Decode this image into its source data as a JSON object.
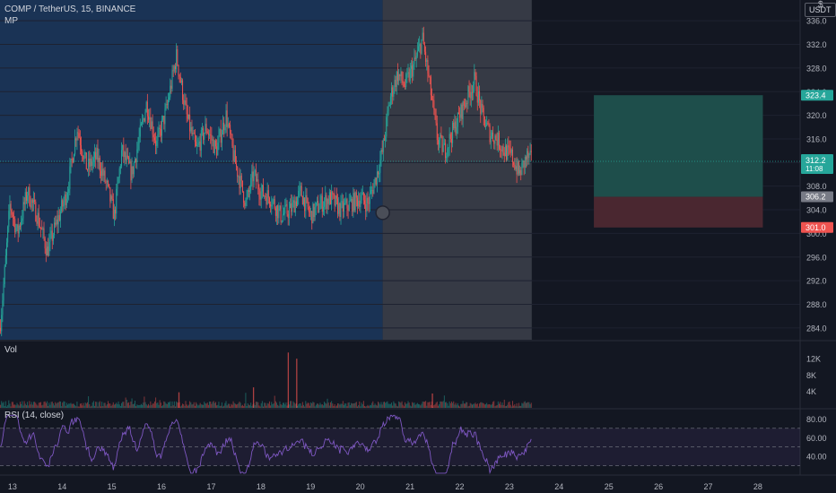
{
  "header": {
    "symbol": "COMP / TetherUS, 15, BINANCE",
    "indicator": "MP",
    "currency": "USDT",
    "corner_icon": "dollar-sign-icon"
  },
  "panes": {
    "volume_label": "Vol",
    "rsi_label": "RSI (14, close)"
  },
  "colors": {
    "background": "#131722",
    "up": "#26a69a",
    "down": "#ef5350",
    "rsi_line": "#7e57c2",
    "range_blue": "#1a3355",
    "range_gray": "#363a45",
    "target_zone": "#1e4e4b",
    "stop_zone": "#4a2730"
  },
  "price_axis": {
    "ticks": [
      "336.0",
      "332.0",
      "328.0",
      "324.0",
      "320.0",
      "316.0",
      "312.0",
      "308.0",
      "304.0",
      "300.0",
      "296.0",
      "292.0",
      "288.0",
      "284.0"
    ],
    "labels": {
      "target": "323.4",
      "last": "312.2",
      "countdown": "11:08",
      "entry": "306.2",
      "stop": "301.0"
    }
  },
  "volume_axis": {
    "ticks": [
      "12K",
      "8K",
      "4K"
    ]
  },
  "rsi_axis": {
    "ticks": [
      "80.00",
      "60.00",
      "40.00"
    ]
  },
  "time_axis": {
    "ticks": [
      "13",
      "14",
      "15",
      "16",
      "17",
      "18",
      "19",
      "20",
      "21",
      "22",
      "23",
      "24",
      "25",
      "26",
      "27",
      "28"
    ]
  },
  "chart_data": {
    "type": "candlestick",
    "y_range": [
      282,
      338
    ],
    "x_range_days": [
      12.75,
      28.85
    ],
    "highlight_ranges_days": [
      [
        12.75,
        20.45
      ],
      [
        20.45,
        23.45
      ]
    ],
    "last_price": 312.2,
    "marker": {
      "day": 20.45,
      "price": 303.5
    },
    "position": {
      "from_day": 24.7,
      "to_day": 28.1,
      "target": 323.4,
      "entry": 306.2,
      "stop": 301.0
    },
    "price_path": [
      [
        12.75,
        284
      ],
      [
        12.85,
        294
      ],
      [
        12.95,
        305
      ],
      [
        13.1,
        300
      ],
      [
        13.3,
        307
      ],
      [
        13.5,
        303
      ],
      [
        13.7,
        297
      ],
      [
        13.9,
        302
      ],
      [
        14.1,
        307
      ],
      [
        14.3,
        318
      ],
      [
        14.5,
        311
      ],
      [
        14.7,
        313
      ],
      [
        14.9,
        308
      ],
      [
        15.05,
        303
      ],
      [
        15.2,
        314
      ],
      [
        15.4,
        310
      ],
      [
        15.7,
        322
      ],
      [
        15.9,
        315
      ],
      [
        16.1,
        321
      ],
      [
        16.3,
        330
      ],
      [
        16.5,
        320
      ],
      [
        16.7,
        314
      ],
      [
        16.9,
        318
      ],
      [
        17.1,
        314
      ],
      [
        17.3,
        320
      ],
      [
        17.45,
        313
      ],
      [
        17.7,
        305
      ],
      [
        17.85,
        310
      ],
      [
        18.0,
        307
      ],
      [
        18.2,
        306
      ],
      [
        18.4,
        303
      ],
      [
        18.6,
        304
      ],
      [
        18.8,
        307
      ],
      [
        19.0,
        303
      ],
      [
        19.2,
        305
      ],
      [
        19.4,
        306
      ],
      [
        19.6,
        304
      ],
      [
        19.8,
        305
      ],
      [
        20.0,
        306
      ],
      [
        20.15,
        305
      ],
      [
        20.3,
        309
      ],
      [
        20.45,
        314
      ],
      [
        20.6,
        323
      ],
      [
        20.75,
        327
      ],
      [
        20.9,
        325
      ],
      [
        21.1,
        329
      ],
      [
        21.25,
        333
      ],
      [
        21.4,
        325
      ],
      [
        21.55,
        316
      ],
      [
        21.7,
        314
      ],
      [
        21.85,
        317
      ],
      [
        22.0,
        320
      ],
      [
        22.15,
        323
      ],
      [
        22.3,
        326
      ],
      [
        22.45,
        320
      ],
      [
        22.6,
        317
      ],
      [
        22.75,
        316
      ],
      [
        22.9,
        314
      ],
      [
        23.05,
        313
      ],
      [
        23.2,
        310
      ],
      [
        23.35,
        313
      ],
      [
        23.45,
        312.2
      ]
    ],
    "volume_spikes": [
      [
        18.55,
        13500
      ],
      [
        18.72,
        12000
      ],
      [
        17.85,
        5000
      ],
      [
        16.35,
        3800
      ],
      [
        21.45,
        3500
      ]
    ],
    "rsi_range": [
      20,
      90
    ],
    "rsi_levels": [
      70,
      50,
      30
    ]
  }
}
